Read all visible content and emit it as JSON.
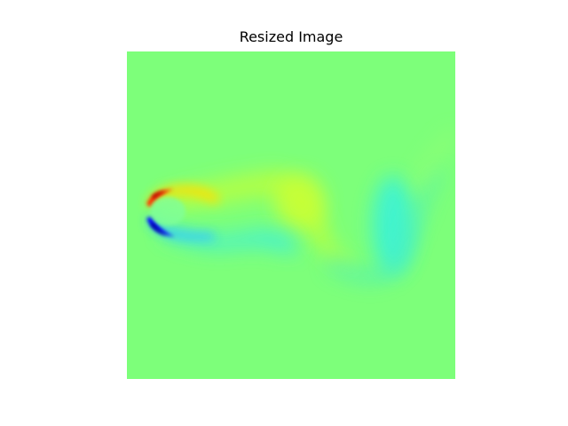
{
  "figure": {
    "title": "Resized Image"
  },
  "colormap": {
    "name": "jet",
    "background": "#7dff7a",
    "positive_strong": "#b00000",
    "positive": "#ff3000",
    "positive_mid": "#ffe000",
    "positive_light": "#c8ff30",
    "negative_strong": "#00008f",
    "negative": "#0000ff",
    "negative_mid": "#2090ff",
    "negative_light": "#30f0e8"
  }
}
